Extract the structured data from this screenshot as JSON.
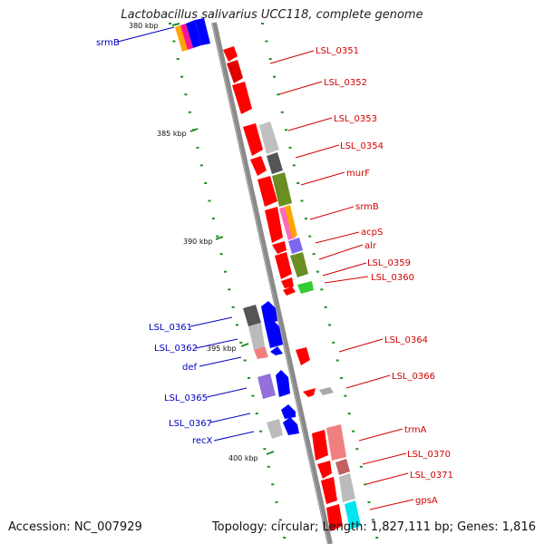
{
  "title": "Lactobacillus salivarius UCC118, complete genome",
  "footer": {
    "accession": "Accession: NC_007929",
    "stats": "Topology: circular; Length: 1,827,111 bp; Genes: 1,816"
  },
  "colors": {
    "backbone": "#888888",
    "gene_red": "#ff0000",
    "gene_blue": "#0000ff",
    "label_red": "#d40000",
    "label_blue": "#0000c0",
    "tick_green": "#228b22"
  },
  "ticks": [
    "380 kbp",
    "385 kbp",
    "390 kbp",
    "395 kbp",
    "400 kbp"
  ],
  "forward_labels": [
    "LSL_0351",
    "LSL_0352",
    "LSL_0353",
    "LSL_0354",
    "murF",
    "srmB",
    "acpS",
    "alr",
    "LSL_0359",
    "LSL_0360",
    "LSL_0364",
    "LSL_0366",
    "trmA",
    "LSL_0370",
    "LSL_0371",
    "gpsA"
  ],
  "reverse_labels": [
    "srmB",
    "LSL_0361",
    "LSL_0362",
    "def",
    "LSL_0365",
    "LSL_0367",
    "recX"
  ]
}
